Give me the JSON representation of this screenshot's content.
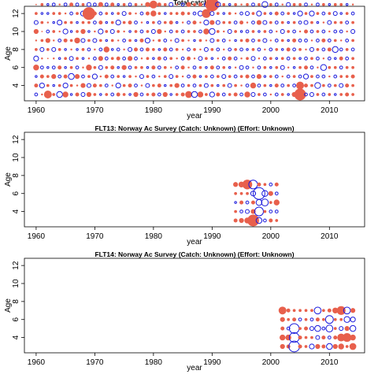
{
  "chart_data": [
    {
      "type": "scatter",
      "title": "Total catches",
      "xlabel": "year",
      "ylabel": "Age",
      "xlim": [
        1958,
        2016
      ],
      "ylim": [
        2.3,
        12.8
      ],
      "xticks": [
        1960,
        1970,
        1980,
        1990,
        2000,
        2010
      ],
      "yticks": [
        4,
        6,
        8,
        10,
        12
      ],
      "years": [
        1960,
        2014
      ],
      "ages": [
        3,
        12
      ],
      "residuals": [
        [
          -0.3,
          0.4,
          -0.2,
          0.6,
          -0.5,
          0.3,
          0.2,
          0.5,
          -0.4,
          0.3,
          0.1,
          0.3
        ],
        [
          0.2,
          -0.5,
          0.4,
          -0.3,
          0.2,
          -0.4,
          0.3,
          0.1,
          0.3,
          -0.2,
          0.3,
          -0.5
        ],
        [
          0.8,
          0.3,
          0.3,
          -0.2,
          0.1,
          0.3,
          0.5,
          -0.3,
          0.2,
          -0.2,
          -0.2,
          0.2
        ],
        [
          0.3,
          -0.2,
          0.5,
          -0.3,
          0.2,
          -0.4,
          0.2,
          0.3,
          -0.2,
          0.3,
          -0.3,
          -0.5
        ],
        [
          -0.6,
          0.3,
          -0.3,
          0.4,
          -0.2,
          0.3,
          -0.3,
          0.2,
          -0.5,
          0.3,
          0.2,
          0.3
        ],
        [
          0.6,
          -0.5,
          0.4,
          -0.2,
          0.3,
          -0.2,
          0.4,
          -0.5,
          0.3,
          0.2,
          -0.3,
          -0.6
        ],
        [
          -0.2,
          0.3,
          -0.6,
          0.3,
          -0.4,
          0.2,
          0.3,
          -0.2,
          0.3,
          -0.3,
          0.4,
          0.2
        ],
        [
          0.4,
          0.2,
          0.5,
          -0.3,
          0.3,
          -0.2,
          0.6,
          0.3,
          -0.2,
          0.3,
          -0.3,
          0.6
        ],
        [
          -0.4,
          0.5,
          -0.3,
          0.2,
          -0.2,
          0.3,
          -0.4,
          0.5,
          0.3,
          -0.5,
          0.3,
          -0.3
        ],
        [
          0.5,
          -0.4,
          0.3,
          0.6,
          0.2,
          -0.3,
          0.3,
          -0.2,
          0.3,
          1.3,
          -0.4,
          0.3
        ],
        [
          0.3,
          0.4,
          -0.5,
          0.3,
          -0.3,
          0.2,
          -0.4,
          0.2,
          -0.3,
          0.4,
          -0.3,
          -0.2
        ],
        [
          -0.2,
          0.3,
          0.2,
          -0.4,
          0.5,
          -0.3,
          0.3,
          -0.5,
          0.4,
          -0.3,
          0.5,
          0.3
        ],
        [
          0.3,
          -0.3,
          0.4,
          0.3,
          -0.3,
          0.6,
          -0.2,
          0.3,
          -0.2,
          0.3,
          -0.3,
          0.2
        ],
        [
          -0.3,
          0.2,
          -0.3,
          0.4,
          0.3,
          -0.2,
          0.3,
          -0.4,
          0.3,
          -0.2,
          0.4,
          -0.3
        ],
        [
          0.4,
          -0.5,
          0.3,
          -0.2,
          0.4,
          -0.3,
          0.2,
          0.3,
          -0.5,
          0.3,
          -0.2,
          0.3
        ],
        [
          0.3,
          0.3,
          -0.2,
          0.5,
          -0.3,
          0.2,
          -0.3,
          0.2,
          0.3,
          -0.4,
          0.3,
          0.2
        ],
        [
          -0.2,
          0.4,
          0.3,
          -0.3,
          0.5,
          -0.4,
          0.3,
          -0.2,
          0.4,
          0.3,
          -0.3,
          0.3
        ],
        [
          0.5,
          -0.3,
          0.2,
          0.3,
          -0.3,
          0.4,
          -0.2,
          0.3,
          -0.3,
          0.2,
          0.3,
          -0.4
        ],
        [
          -0.3,
          0.2,
          -0.4,
          0.3,
          0.2,
          -0.3,
          0.4,
          -0.3,
          0.2,
          -0.3,
          0.2,
          0.3
        ],
        [
          0.3,
          -0.4,
          0.3,
          -0.2,
          0.3,
          0.4,
          -0.5,
          0.3,
          -0.2,
          0.4,
          0.5,
          -0.3
        ],
        [
          0.4,
          0.3,
          -0.3,
          0.4,
          -0.2,
          0.3,
          0.2,
          -0.4,
          0.3,
          0.6,
          0.8,
          0.3
        ],
        [
          -0.3,
          0.4,
          0.2,
          -0.3,
          0.4,
          -0.2,
          0.3,
          0.5,
          -0.3,
          0.3,
          0.4,
          0.3
        ],
        [
          0.5,
          -0.2,
          0.3,
          0.3,
          -0.3,
          0.4,
          -0.3,
          0.2,
          0.3,
          -0.2,
          0.3,
          0.4
        ],
        [
          -0.2,
          0.3,
          -0.4,
          0.2,
          0.3,
          -0.3,
          0.2,
          -0.3,
          0.4,
          0.3,
          -0.4,
          0.3
        ],
        [
          0.3,
          0.5,
          0.3,
          -0.3,
          0.2,
          0.3,
          -0.4,
          0.3,
          -0.2,
          0.3,
          0.2,
          -0.3
        ],
        [
          0.4,
          -0.3,
          0.2,
          0.4,
          -0.3,
          0.2,
          0.3,
          -0.3,
          0.2,
          0.4,
          -0.3,
          0.3
        ],
        [
          0.7,
          0.3,
          -0.3,
          0.2,
          0.4,
          -0.3,
          0.2,
          0.3,
          -0.3,
          0.3,
          0.5,
          0.4
        ],
        [
          -0.6,
          -0.3,
          0.4,
          -0.3,
          0.2,
          0.3,
          -0.2,
          0.3,
          0.4,
          -0.3,
          0.3,
          0.6
        ],
        [
          0.6,
          0.3,
          -0.2,
          0.3,
          -0.4,
          0.2,
          0.3,
          -0.3,
          0.2,
          -0.5,
          0.4,
          0.7
        ],
        [
          0.3,
          -0.4,
          0.3,
          -0.2,
          0.3,
          -0.4,
          0.2,
          0.6,
          -0.5,
          0.9,
          -0.4,
          1.0
        ],
        [
          -0.5,
          0.3,
          -0.3,
          0.4,
          -0.2,
          0.3,
          -0.4,
          -0.6,
          0.5,
          -0.4,
          1.4,
          1.1
        ],
        [
          0.4,
          -0.2,
          0.3,
          -0.3,
          0.2,
          -0.3,
          0.3,
          0.3,
          -0.4,
          0.3,
          -0.5,
          0.4
        ],
        [
          -0.3,
          0.3,
          -0.4,
          0.3,
          -0.3,
          0.2,
          -0.3,
          0.2,
          0.3,
          -0.2,
          0.3,
          -0.6
        ],
        [
          0.3,
          -0.4,
          0.3,
          -0.2,
          0.4,
          -0.3,
          0.2,
          -0.4,
          0.3,
          0.3,
          -0.2,
          0.3
        ],
        [
          0.4,
          0.3,
          -0.3,
          0.2,
          -0.3,
          0.3,
          -0.2,
          0.3,
          -0.3,
          0.2,
          0.3,
          -0.2
        ],
        [
          -0.3,
          0.2,
          0.3,
          -0.4,
          0.2,
          -0.3,
          0.3,
          -0.2,
          0.4,
          -0.3,
          0.2,
          0.3
        ],
        [
          0.6,
          -0.3,
          0.4,
          -0.3,
          0.3,
          -0.2,
          0.4,
          -0.3,
          0.2,
          -0.4,
          0.3,
          0.7
        ],
        [
          -0.4,
          0.6,
          -0.3,
          0.2,
          -0.4,
          0.3,
          -0.3,
          0.3,
          -0.3,
          0.3,
          -0.3,
          0.3
        ],
        [
          0.3,
          -0.3,
          0.5,
          -0.3,
          0.2,
          -0.3,
          0.3,
          -0.2,
          0.5,
          -0.5,
          0.3,
          0.2
        ],
        [
          -0.3,
          0.3,
          -0.2,
          0.3,
          -0.3,
          0.2,
          -0.4,
          0.3,
          -0.4,
          0.3,
          -0.6,
          -0.3
        ],
        [
          0.2,
          -0.2,
          0.3,
          -0.2,
          0.3,
          -0.3,
          0.2,
          -0.3,
          0.3,
          -0.2,
          0.3,
          0.2
        ],
        [
          -0.3,
          0.4,
          -0.3,
          0.3,
          -0.2,
          0.3,
          -0.3,
          0.2,
          -0.3,
          0.4,
          -0.3,
          -0.3
        ],
        [
          0.3,
          -0.3,
          0.2,
          -0.4,
          0.3,
          -0.2,
          0.3,
          -0.4,
          0.3,
          -0.3,
          0.2,
          0.3
        ],
        [
          -0.2,
          0.3,
          -0.3,
          0.2,
          -0.3,
          0.4,
          -0.2,
          0.3,
          -0.2,
          0.3,
          -0.4,
          0.2
        ],
        [
          0.5,
          -0.3,
          0.3,
          -0.2,
          0.3,
          -0.3,
          0.4,
          -0.3,
          0.3,
          -0.2,
          0.3,
          -0.3
        ],
        [
          1.2,
          0.8,
          -0.3,
          0.3,
          -0.2,
          0.3,
          -0.3,
          0.2,
          -0.3,
          -0.5,
          0.3,
          0.3
        ],
        [
          -0.3,
          0.4,
          -0.5,
          0.4,
          -0.3,
          0.2,
          -0.3,
          0.4,
          -0.4,
          0.3,
          -0.3,
          0.3
        ],
        [
          -0.4,
          0.3,
          0.3,
          -0.3,
          0.3,
          -0.4,
          0.2,
          -0.3,
          0.3,
          -0.5,
          0.2,
          -0.3
        ],
        [
          0.3,
          -0.6,
          -0.3,
          0.2,
          -0.3,
          0.3,
          -0.3,
          0.3,
          -0.2,
          0.3,
          -0.3,
          0.3
        ],
        [
          -0.3,
          0.3,
          -0.3,
          -0.6,
          0.2,
          -0.3,
          0.4,
          -0.3,
          0.2,
          -0.3,
          0.3,
          -0.3
        ],
        [
          0.3,
          -0.3,
          0.2,
          0.3,
          -0.3,
          0.4,
          -0.3,
          0.2,
          -0.4,
          0.3,
          -0.2,
          0.4
        ],
        [
          -0.2,
          0.3,
          -0.3,
          0.3,
          -0.2,
          -0.6,
          0.3,
          -0.3,
          0.3,
          -0.4,
          0.3,
          -0.3
        ],
        [
          0.3,
          -0.4,
          0.3,
          -0.3,
          0.4,
          -0.3,
          0.2,
          -0.3,
          0.3,
          -0.2,
          0.3,
          0.2
        ],
        [
          0.4,
          0.4,
          0.3,
          0.3,
          -0.3,
          0.3,
          -0.3,
          0.2,
          -0.3,
          0.3,
          -0.2,
          0.3
        ],
        [
          0.3,
          0.3,
          0.4,
          0.3,
          0.3,
          -0.3,
          0.3,
          -0.4,
          0.3,
          -0.3,
          0.2,
          -0.3
        ]
      ]
    },
    {
      "type": "scatter",
      "title": "FLT13: Norway Ac Survey (Catch: Unknown) (Effort: Unknown)",
      "xlabel": "year",
      "ylabel": "Age",
      "xlim": [
        1958,
        2016
      ],
      "ylim": [
        2.3,
        12.8
      ],
      "xticks": [
        1960,
        1970,
        1980,
        1990,
        2000,
        2010
      ],
      "yticks": [
        4,
        6,
        8,
        10,
        12
      ],
      "years": [
        1994,
        2001
      ],
      "ages": [
        3,
        7
      ],
      "residuals": [
        [
          0.4,
          0.3,
          -0.2,
          0.3,
          0.5
        ],
        [
          0.5,
          -0.3,
          0.4,
          0.3,
          0.6
        ],
        [
          0.6,
          -0.4,
          -0.3,
          0.3,
          1.0
        ],
        [
          1.2,
          0.5,
          0.4,
          -0.5,
          -0.9
        ],
        [
          -0.6,
          -0.9,
          -0.6,
          -1.2,
          0.4
        ],
        [
          -0.3,
          0.3,
          -0.7,
          -0.6,
          0.3
        ],
        [
          0.4,
          -0.3,
          0.3,
          0.5,
          -0.3
        ],
        [
          0.3,
          -0.3,
          0.6,
          -0.3,
          0.4
        ]
      ]
    },
    {
      "type": "scatter",
      "title": "FLT14: Norway Ac Survey (Catch: Unknown) (Effort: Unknown)",
      "xlabel": "year",
      "ylabel": "Age",
      "xlim": [
        1958,
        2016
      ],
      "ylim": [
        2.3,
        12.8
      ],
      "xticks": [
        1960,
        1970,
        1980,
        1990,
        2000,
        2010
      ],
      "yticks": [
        4,
        6,
        8,
        10,
        12
      ],
      "years": [
        2002,
        2014
      ],
      "ages": [
        3,
        7
      ],
      "residuals": [
        [
          0.5,
          0.6,
          0.4,
          0.5,
          0.8
        ],
        [
          0.4,
          0.6,
          -0.3,
          0.3,
          0.4
        ],
        [
          -1.1,
          -1.0,
          -1.0,
          0.4,
          0.3
        ],
        [
          0.4,
          0.4,
          0.3,
          -0.3,
          0.3
        ],
        [
          0.3,
          0.3,
          0.4,
          0.3,
          0.3
        ],
        [
          -0.5,
          0.3,
          -0.4,
          -0.3,
          0.3
        ],
        [
          0.5,
          -0.4,
          -0.6,
          0.4,
          -0.7
        ],
        [
          0.4,
          0.4,
          -0.3,
          0.3,
          0.3
        ],
        [
          -0.6,
          -0.3,
          -0.7,
          -0.8,
          0.4
        ],
        [
          0.5,
          0.4,
          0.3,
          0.3,
          0.6
        ],
        [
          0.6,
          0.8,
          -0.4,
          0.3,
          0.9
        ],
        [
          0.3,
          0.9,
          0.5,
          -0.6,
          -0.7
        ],
        [
          0.7,
          0.6,
          -0.6,
          -0.5,
          0.5
        ]
      ]
    }
  ],
  "colors": {
    "positive": "#e8604c",
    "negative": "#1a1adc",
    "axis": "#000000"
  }
}
